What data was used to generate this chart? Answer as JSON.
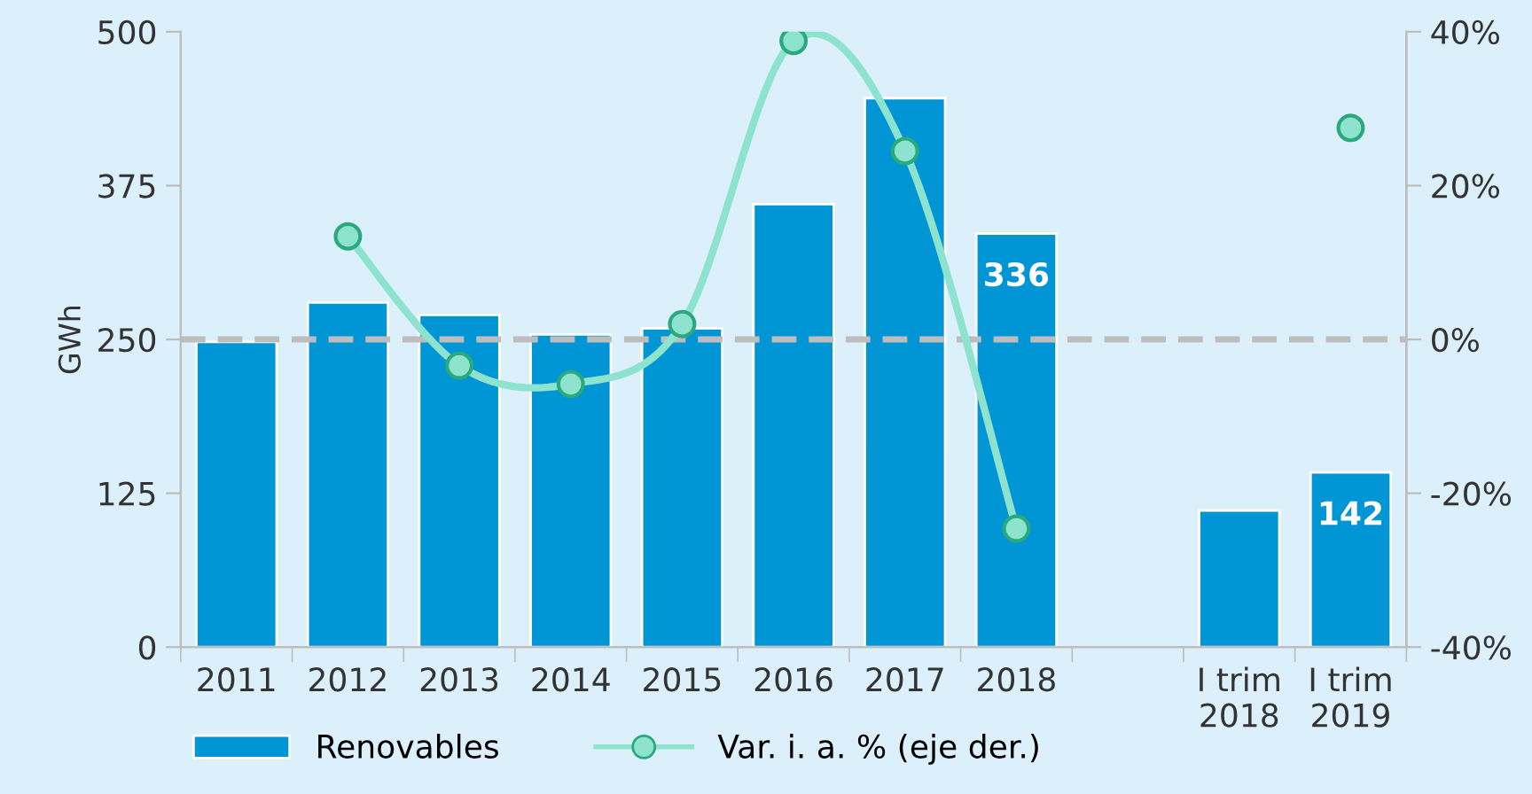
{
  "chart_data": {
    "type": "bar",
    "ylabel": "GWh",
    "categories": [
      "2011",
      "2012",
      "2013",
      "2014",
      "2015",
      "2016",
      "2017",
      "2018",
      null,
      "I trim\n2018",
      "I trim\n2019"
    ],
    "series": [
      {
        "name": "Renovables",
        "color": "#0095d5",
        "values": [
          248,
          280,
          270,
          254,
          259,
          360,
          446,
          336,
          null,
          111,
          142
        ],
        "value_labels": [
          null,
          null,
          null,
          null,
          null,
          null,
          null,
          "336",
          null,
          null,
          "142"
        ]
      },
      {
        "name": "Var. i. a. % (eje der.)",
        "type": "line",
        "axis": "y2",
        "color": "#8ee3cf",
        "marker": "circle",
        "values": [
          null,
          13.4,
          -3.4,
          -5.8,
          2.0,
          38.8,
          24.5,
          -24.6,
          null,
          null,
          27.5
        ]
      }
    ],
    "ylim": [
      0,
      500
    ],
    "yticks": [
      0,
      125,
      250,
      375,
      500
    ],
    "y2lim": [
      -40,
      40
    ],
    "y2ticks": [
      {
        "value": -40,
        "label": "-40%"
      },
      {
        "value": -20,
        "label": "-20%"
      },
      {
        "value": 0,
        "label": "0%"
      },
      {
        "value": 20,
        "label": "20%"
      },
      {
        "value": 40,
        "label": "40%"
      }
    ],
    "ref_lines": [
      {
        "axis": "y2",
        "value": 0,
        "color": "#bdbdbd",
        "line_style": "dashed"
      }
    ],
    "grid": false,
    "legend": "bottom"
  }
}
